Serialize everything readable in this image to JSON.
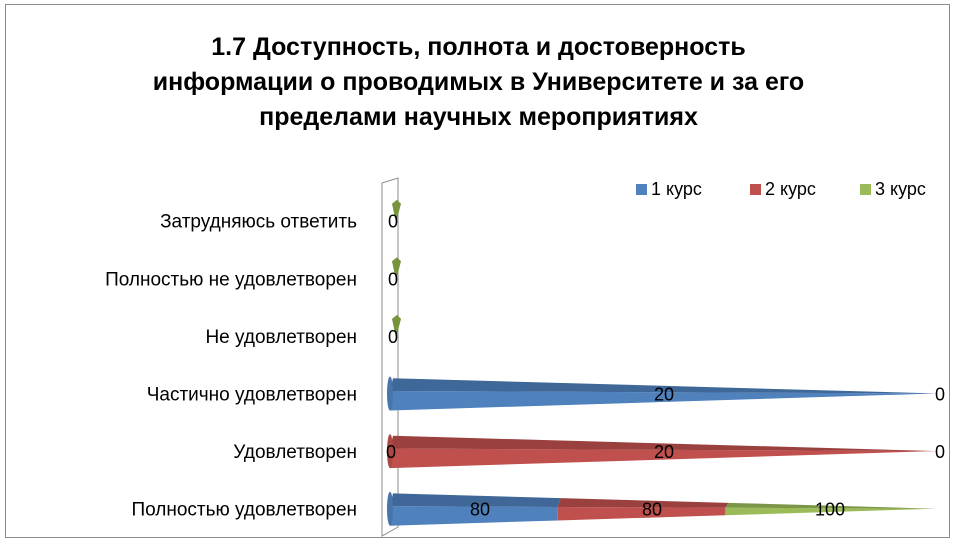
{
  "chart_data": {
    "type": "bar",
    "orientation": "horizontal",
    "style": "3d-cone",
    "title_lines": [
      "1.7 Доступность, полнота и достоверность",
      "информации о проводимых в Университете и за его",
      "пределами научных мероприятиях"
    ],
    "categories": [
      "Полностью удовлетворен",
      "Удовлетворен",
      "Частично удовлетворен",
      "Не удовлетворен",
      "Полностью не удовлетворен",
      "Затрудняюсь ответить"
    ],
    "stacked": true,
    "percent_scale": true,
    "series": [
      {
        "name": "1 курс",
        "color": "#4F81BD",
        "values": [
          80,
          0,
          20,
          0,
          0,
          0
        ]
      },
      {
        "name": "2 курс",
        "color": "#C0504D",
        "values": [
          80,
          20,
          0,
          0,
          0,
          0
        ]
      },
      {
        "name": "3 курс",
        "color": "#9BBB59",
        "values": [
          100,
          0,
          0,
          0,
          0,
          0
        ]
      }
    ],
    "data_labels": [
      {
        "category": "Полностью удовлетворен",
        "labels": [
          "80",
          "80",
          "100"
        ]
      },
      {
        "category": "Удовлетворен",
        "labels": [
          "0",
          "20",
          "0"
        ]
      },
      {
        "category": "Частично удовлетворен",
        "labels": [
          "20",
          "0"
        ]
      },
      {
        "category": "Не удовлетворен",
        "labels": [
          "0"
        ]
      },
      {
        "category": "Полностью не удовлетворен",
        "labels": [
          "0"
        ]
      },
      {
        "category": "Затрудняюсь ответить",
        "labels": [
          "0"
        ]
      }
    ],
    "legend_position": "top-right",
    "grid": false
  }
}
